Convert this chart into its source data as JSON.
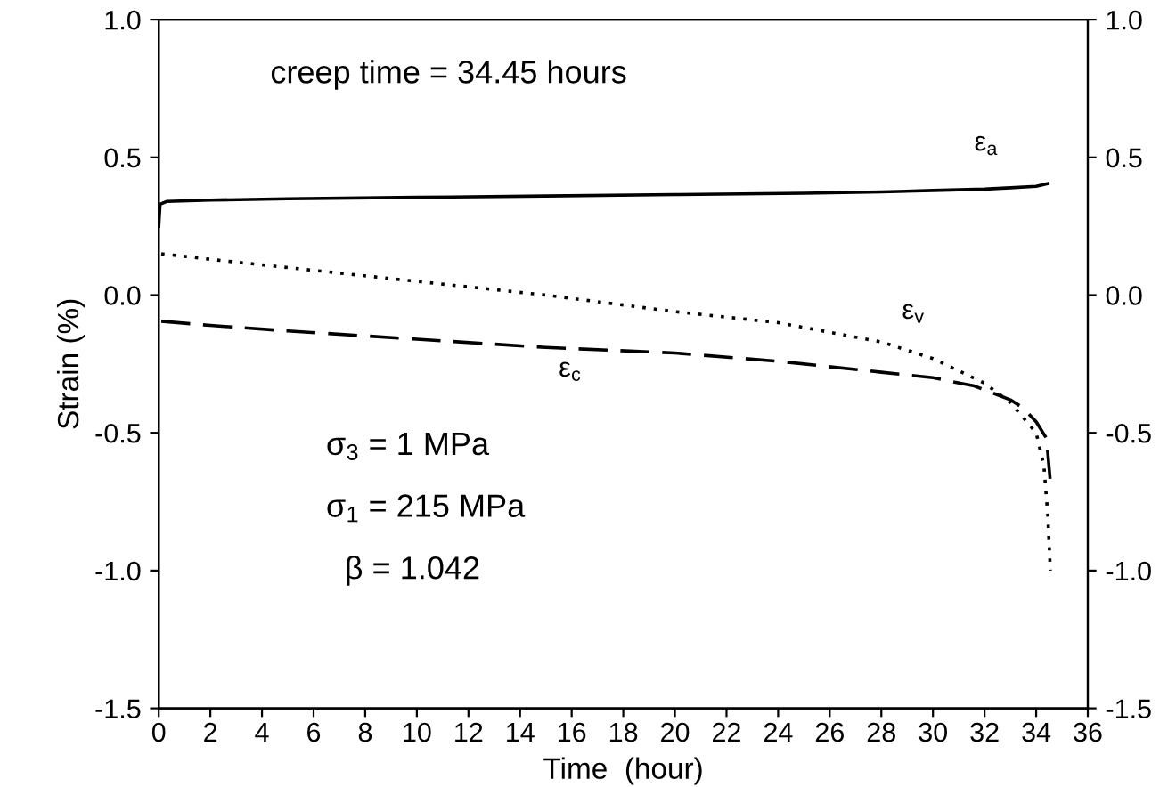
{
  "chart_data": {
    "type": "line",
    "xlabel": "Time  (hour)",
    "ylabel": "Strain (%)",
    "xlim": [
      0,
      36
    ],
    "xticks": [
      0,
      2,
      4,
      6,
      8,
      10,
      12,
      14,
      16,
      18,
      20,
      22,
      24,
      26,
      28,
      30,
      32,
      34,
      36
    ],
    "ylim": [
      -1.5,
      1.0
    ],
    "yticks": [
      {
        "value": -1.5,
        "label": "-1.5"
      },
      {
        "value": -1,
        "label": "-1.0"
      },
      {
        "value": -0.5,
        "label": "-0.5"
      },
      {
        "value": 0,
        "label": "0.0"
      },
      {
        "value": 0.5,
        "label": "0.5"
      },
      {
        "value": 1,
        "label": "1.0"
      }
    ],
    "y2lim": [
      -1.5,
      1.0
    ],
    "y2ticks": [
      {
        "value": -1.5,
        "label": "-1.5"
      },
      {
        "value": -1,
        "label": "-1.0"
      },
      {
        "value": -0.5,
        "label": "-0.5"
      },
      {
        "value": 0,
        "label": "0.0"
      },
      {
        "value": 0.5,
        "label": "0.5"
      },
      {
        "value": 1,
        "label": "1.0"
      }
    ],
    "legend": false,
    "grid": false,
    "marker": "none",
    "annotations": [
      "creep time = 34.45 hours",
      "σ$_{3}$ = 1 MPa",
      "σ$_{1}$ = 215 MPa",
      "β = 1.042"
    ],
    "series": [
      {
        "name": "ε$_{a}$",
        "color": "#000000",
        "line_style": "solid",
        "x": [
          0,
          0.05,
          0.3,
          2,
          5,
          10,
          15,
          20,
          25,
          28,
          30,
          32,
          33,
          34,
          34.45
        ],
        "values": [
          0.25,
          0.33,
          0.34,
          0.345,
          0.35,
          0.355,
          0.36,
          0.365,
          0.37,
          0.375,
          0.38,
          0.385,
          0.39,
          0.395,
          0.405
        ]
      },
      {
        "name": "ε$_{v}$",
        "color": "#000000",
        "line_style": "dotted",
        "x": [
          0.1,
          2,
          5,
          10,
          15,
          20,
          24,
          28,
          30,
          32,
          33,
          34,
          34.3,
          34.45,
          34.55
        ],
        "values": [
          0.15,
          0.13,
          0.1,
          0.05,
          0.0,
          -0.06,
          -0.1,
          -0.17,
          -0.23,
          -0.32,
          -0.39,
          -0.5,
          -0.62,
          -0.8,
          -1.0
        ]
      },
      {
        "name": "ε$_{c}$",
        "color": "#000000",
        "line_style": "dashed",
        "x": [
          0.1,
          2,
          5,
          10,
          15,
          20,
          24,
          28,
          30,
          31.6,
          33,
          33.5,
          34,
          34.4,
          34.55
        ],
        "values": [
          -0.095,
          -0.11,
          -0.13,
          -0.16,
          -0.19,
          -0.21,
          -0.24,
          -0.28,
          -0.3,
          -0.33,
          -0.38,
          -0.41,
          -0.46,
          -0.52,
          -0.68
        ]
      }
    ]
  }
}
